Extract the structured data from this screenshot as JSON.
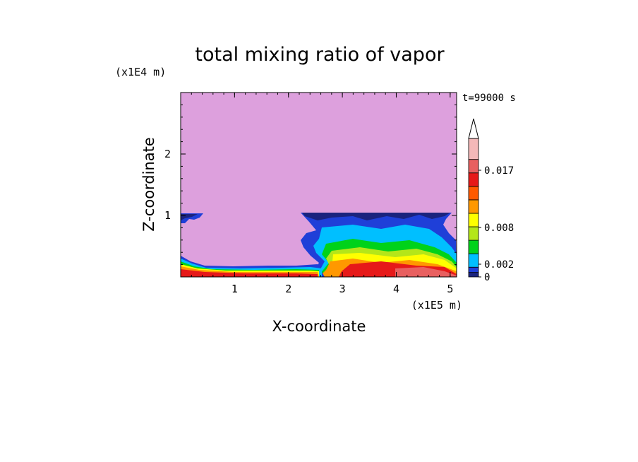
{
  "chart_data": {
    "type": "heatmap",
    "title": "total mixing ratio of vapor",
    "xlabel": "X-coordinate",
    "ylabel": "Z-coordinate",
    "x_scale_label": "(x1E5 m)",
    "y_scale_label": "(x1E4 m)",
    "time_label": "t=99000 s",
    "xlim": [
      0,
      5.12
    ],
    "ylim": [
      0,
      3.0
    ],
    "x_ticks": [
      1,
      2,
      3,
      4,
      5
    ],
    "y_ticks": [
      1,
      2
    ],
    "x_tick_labels": [
      "1",
      "2",
      "3",
      "4",
      "5"
    ],
    "y_tick_labels": [
      "1",
      "2"
    ],
    "background_level_color": "#dda0dd",
    "colorbar": {
      "levels": [
        {
          "color": "#1a237e"
        },
        {
          "color": "#1f3fd8"
        },
        {
          "color": "#00bfff"
        },
        {
          "color": "#00d21a"
        },
        {
          "color": "#b4e619"
        },
        {
          "color": "#ffff00"
        },
        {
          "color": "#ff9800"
        },
        {
          "color": "#ff5a00"
        },
        {
          "color": "#e61919"
        },
        {
          "color": "#e86060"
        },
        {
          "color": "#f4b8b8"
        }
      ],
      "tick_labels": [
        "0",
        "0.002",
        "0.008",
        "0.017"
      ],
      "tick_values": [
        0,
        0.002,
        0.008,
        0.017
      ],
      "extend": "max"
    },
    "regions": {
      "upper_layer_top_km": 1.02,
      "left_patch_x": [
        0,
        0.4
      ],
      "right_block_x": [
        2.25,
        5.12
      ],
      "surface_layer_height": 0.15
    }
  }
}
